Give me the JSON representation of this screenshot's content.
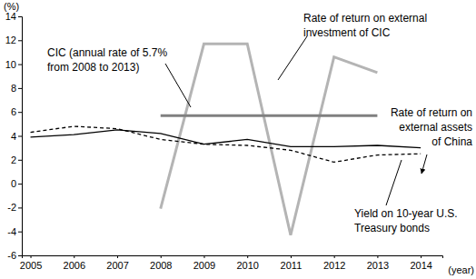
{
  "chart_data": {
    "type": "line",
    "x_label": "(year)",
    "y_label": "(%)",
    "x": [
      2005,
      2006,
      2007,
      2008,
      2009,
      2010,
      2011,
      2012,
      2013,
      2014
    ],
    "xlim": [
      2004.8,
      2014.5
    ],
    "xticks": [
      2005,
      2006,
      2007,
      2008,
      2009,
      2010,
      2011,
      2012,
      2013,
      2014
    ],
    "ylim": [
      -6,
      14
    ],
    "yticks": [
      -6,
      -4,
      -2,
      0,
      2,
      4,
      6,
      8,
      10,
      12,
      14
    ],
    "grid": false,
    "series": [
      {
        "color": "#b4b4b4",
        "line_style": "solid",
        "values": [
          null,
          null,
          null,
          -2.1,
          11.7,
          11.7,
          -4.3,
          10.6,
          9.3,
          null
        ]
      },
      {
        "color": "#808080",
        "line_style": "solid",
        "values": [
          null,
          null,
          null,
          5.7,
          5.7,
          5.7,
          5.7,
          5.7,
          5.7,
          null
        ]
      },
      {
        "color": "#000000",
        "line_style": "solid",
        "values": [
          3.9,
          4.1,
          4.5,
          4.2,
          3.3,
          3.7,
          3.1,
          3.1,
          3.2,
          3.0
        ]
      },
      {
        "color": "#000000",
        "line_style": "dashed",
        "values": [
          4.3,
          4.8,
          4.6,
          3.7,
          3.3,
          3.2,
          2.8,
          1.8,
          2.4,
          2.5
        ]
      }
    ],
    "annotations": [
      {
        "text": [
          "Rate of return on external",
          "investment of CIC"
        ]
      },
      {
        "text": [
          "CIC (annual rate of 5.7%",
          "from 2008 to 2013)"
        ]
      },
      {
        "text": [
          "Rate of return on",
          "external assets",
          "of China"
        ]
      },
      {
        "text": [
          "Yield on 10-year U.S.",
          "Treasury bonds"
        ]
      }
    ]
  }
}
